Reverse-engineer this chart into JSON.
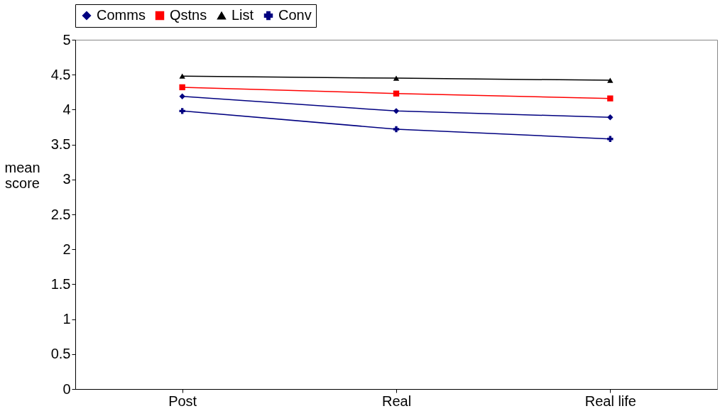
{
  "chart_data": {
    "type": "line",
    "categories": [
      "Post",
      "Real",
      "Real life"
    ],
    "ylabel": "mean score",
    "ylim": [
      0,
      5
    ],
    "yticks": [
      0,
      0.5,
      1,
      1.5,
      2,
      2.5,
      3,
      3.5,
      4,
      4.5,
      5
    ],
    "grid": false,
    "legend": "top",
    "series": [
      {
        "name": "Comms",
        "color": "#000080",
        "marker": "diamond",
        "values": [
          4.19,
          3.98,
          3.89
        ]
      },
      {
        "name": "Qstns",
        "color": "#ff0000",
        "marker": "square",
        "values": [
          4.32,
          4.23,
          4.16
        ]
      },
      {
        "name": "List",
        "color": "#000000",
        "marker": "triangle",
        "values": [
          4.48,
          4.45,
          4.42
        ]
      },
      {
        "name": "Conv",
        "color": "#000080",
        "marker": "cross",
        "values": [
          3.98,
          3.72,
          3.58
        ]
      }
    ]
  }
}
